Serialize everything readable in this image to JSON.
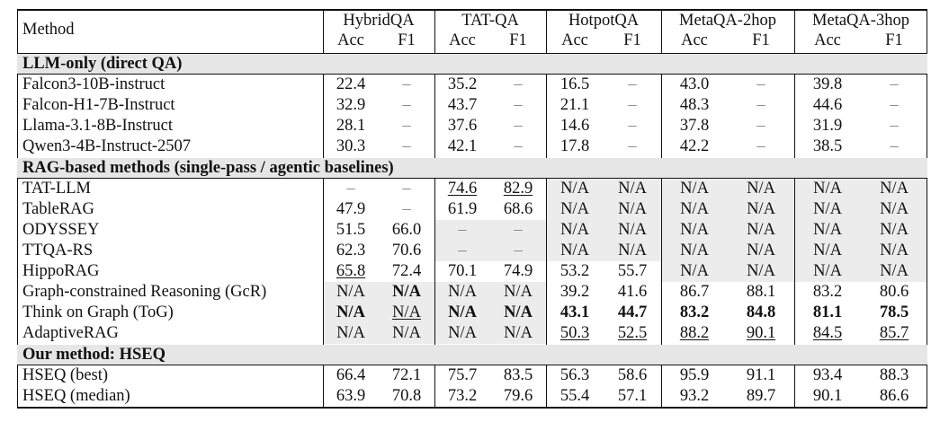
{
  "header": {
    "method": "Method",
    "datasets": [
      "HybridQA",
      "TAT-QA",
      "HotpotQA",
      "MetaQA-2hop",
      "MetaQA-3hop"
    ],
    "metrics": [
      "Acc",
      "F1"
    ]
  },
  "sections": [
    {
      "title": "LLM-only (direct QA)",
      "rows": [
        {
          "method": "Falcon3-10B-instruct",
          "cells": [
            "22.4",
            "–",
            "35.2",
            "–",
            "16.5",
            "–",
            "43.0",
            "–",
            "39.8",
            "–"
          ]
        },
        {
          "method": "Falcon-H1-7B-Instruct",
          "cells": [
            "32.9",
            "–",
            "43.7",
            "–",
            "21.1",
            "–",
            "48.3",
            "–",
            "44.6",
            "–"
          ]
        },
        {
          "method": "Llama-3.1-8B-Instruct",
          "cells": [
            "28.1",
            "–",
            "37.6",
            "–",
            "14.6",
            "–",
            "37.8",
            "–",
            "31.9",
            "–"
          ]
        },
        {
          "method": "Qwen3-4B-Instruct-2507",
          "cells": [
            "30.3",
            "–",
            "42.1",
            "–",
            "17.8",
            "–",
            "42.2",
            "–",
            "38.5",
            "–"
          ]
        }
      ]
    },
    {
      "title": "RAG-based methods (single-pass / agentic baselines)",
      "rows": [
        {
          "method": "TAT-LLM",
          "cells": [
            "–",
            "–",
            "74.6",
            "82.9",
            "N/A",
            "N/A",
            "N/A",
            "N/A",
            "N/A",
            "N/A"
          ]
        },
        {
          "method": "TableRAG",
          "cells": [
            "47.9",
            "–",
            "61.9",
            "68.6",
            "N/A",
            "N/A",
            "N/A",
            "N/A",
            "N/A",
            "N/A"
          ]
        },
        {
          "method": "ODYSSEY",
          "cells": [
            "51.5",
            "66.0",
            "–",
            "–",
            "N/A",
            "N/A",
            "N/A",
            "N/A",
            "N/A",
            "N/A"
          ]
        },
        {
          "method": "TTQA-RS",
          "cells": [
            "62.3",
            "70.6",
            "–",
            "–",
            "N/A",
            "N/A",
            "N/A",
            "N/A",
            "N/A",
            "N/A"
          ]
        },
        {
          "method": "HippoRAG",
          "cells": [
            "65.8",
            "72.4",
            "70.1",
            "74.9",
            "53.2",
            "55.7",
            "N/A",
            "N/A",
            "N/A",
            "N/A"
          ]
        },
        {
          "method": "Graph-constrained Reasoning (GcR)",
          "cells": [
            "N/A",
            "N/A",
            "N/A",
            "N/A",
            "39.2",
            "41.6",
            "86.7",
            "88.1",
            "83.2",
            "80.6"
          ]
        },
        {
          "method": "Think on Graph (ToG)",
          "cells": [
            "N/A",
            "N/A",
            "N/A",
            "N/A",
            "43.1",
            "44.7",
            "83.2",
            "84.8",
            "81.1",
            "78.5"
          ]
        },
        {
          "method": "AdaptiveRAG",
          "cells": [
            "N/A",
            "N/A",
            "N/A",
            "N/A",
            "50.3",
            "52.5",
            "88.2",
            "90.1",
            "84.5",
            "85.7"
          ]
        }
      ]
    },
    {
      "title": "Our method: HSEQ",
      "rows": [
        {
          "method": "HSEQ (best)",
          "cells": [
            "66.4",
            "72.1",
            "75.7",
            "83.5",
            "56.3",
            "58.6",
            "95.9",
            "91.1",
            "93.4",
            "88.3"
          ]
        },
        {
          "method": "HSEQ (median)",
          "cells": [
            "63.9",
            "70.8",
            "73.2",
            "79.6",
            "55.4",
            "57.1",
            "93.2",
            "89.7",
            "90.1",
            "86.6"
          ]
        }
      ]
    }
  ]
}
